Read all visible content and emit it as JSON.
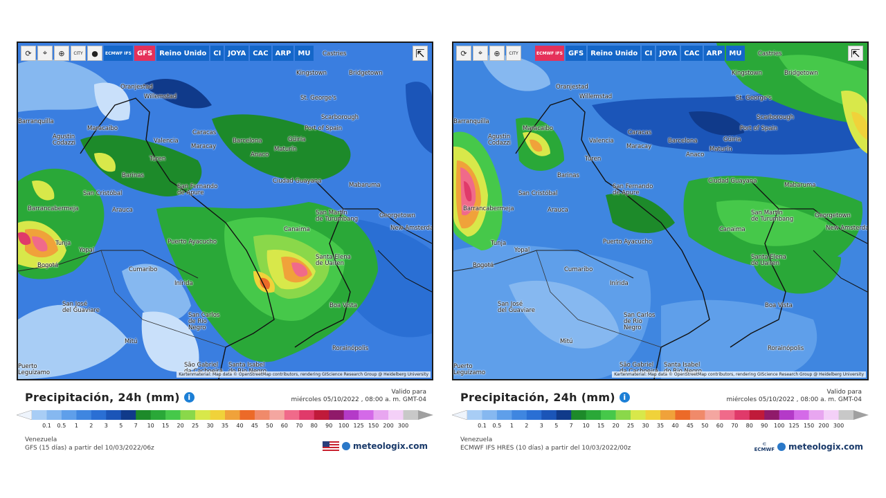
{
  "panels": [
    {
      "id": "left",
      "toolbar": {
        "refresh_icon": "refresh-icon",
        "location_icon": "location-pin-icon",
        "zoom_icon": "zoom-icon",
        "city_label": "CITY",
        "dot_icon": "circle-icon",
        "ecmwf_label": "ECMWF IFS",
        "tabs": [
          "GFS",
          "Reino Unido",
          "CI",
          "JOYA",
          "CAC",
          "ARP",
          "MU"
        ],
        "active_tab": "GFS",
        "share_icon": "share-icon"
      },
      "cities": [
        {
          "name": "Castries"
        },
        {
          "name": "Kingstown"
        },
        {
          "name": "Bridgetown"
        },
        {
          "name": "Oranjestad"
        },
        {
          "name": "Willemstad"
        },
        {
          "name": "St. George's"
        },
        {
          "name": "Scarborough"
        },
        {
          "name": "Barranquilla"
        },
        {
          "name": "Maracaibo"
        },
        {
          "name": "Agustin\nCodazzi"
        },
        {
          "name": "Caracas"
        },
        {
          "name": "Port of Spain"
        },
        {
          "name": "Valencia"
        },
        {
          "name": "Maracay"
        },
        {
          "name": "Barcelona"
        },
        {
          "name": "Güiria"
        },
        {
          "name": "Maturín"
        },
        {
          "name": "Turen"
        },
        {
          "name": "Anaco"
        },
        {
          "name": "Barinas"
        },
        {
          "name": "Ciudad Guayana"
        },
        {
          "name": "Mabaruma"
        },
        {
          "name": "San Fernando\nde Apure"
        },
        {
          "name": "San Cristóbal"
        },
        {
          "name": "Arauca"
        },
        {
          "name": "Barrancabermeja"
        },
        {
          "name": "San Martín\nde Turumbang"
        },
        {
          "name": "Georgetown"
        },
        {
          "name": "New Amsterdam"
        },
        {
          "name": "Canaima"
        },
        {
          "name": "Tunja"
        },
        {
          "name": "Yopal"
        },
        {
          "name": "Puerto Ayacucho"
        },
        {
          "name": "Santa Elena\nde Uairen"
        },
        {
          "name": "Bogotá"
        },
        {
          "name": "Cumaribo"
        },
        {
          "name": "Inírida"
        },
        {
          "name": "Boa Vista"
        },
        {
          "name": "San José\ndel Guaviare"
        },
        {
          "name": "San Carlos\nde Río\nNegro"
        },
        {
          "name": "Mitú"
        },
        {
          "name": "Rorainópolis"
        },
        {
          "name": "São Gabriel\nda Cachoeira"
        },
        {
          "name": "Santa Isabel\ndo Rio Negro"
        },
        {
          "name": "Puerto\nLeguízamo"
        }
      ],
      "attribution": "Kartenmaterial: Map data © OpenStreetMap contributors, rendering GIScience Research Group @ Heidelberg University",
      "title": "Precipitación, 24h (mm)",
      "valid_label": "Valido para",
      "valid_time": "miércoles 05/10/2022 , 08:00 a. m. GMT-04",
      "region": "Venezuela",
      "model_run": "GFS (15 días) a partir del 10/03/2022/06z",
      "flag_icon": "us-flag-icon",
      "brand": "meteologix.com"
    },
    {
      "id": "right",
      "toolbar": {
        "refresh_icon": "refresh-icon",
        "location_icon": "location-pin-icon",
        "zoom_icon": "zoom-icon",
        "city_label": "CITY",
        "ecmwf_label": "ECMWF IFS",
        "tabs": [
          "GFS",
          "Reino Unido",
          "CI",
          "JOYA",
          "CAC",
          "ARP",
          "MU"
        ],
        "active_tab": "ECMWF IFS",
        "share_icon": "share-icon"
      },
      "attribution": "Kartenmaterial: Map data © OpenStreetMap contributors, rendering GIScience Research Group @ Heidelberg University",
      "title": "Precipitación, 24h (mm)",
      "valid_label": "Valido para",
      "valid_time": "miércoles 05/10/2022 , 08:00 a. m. GMT-04",
      "region": "Venezuela",
      "model_run": "ECMWF IFS HRES (10 días) a partir del 10/03/2022/00z",
      "ecmwf_logo": "ECMWF",
      "brand": "meteologix.com"
    }
  ],
  "legend": {
    "ticks": [
      "0.1",
      "0.5",
      "1",
      "2",
      "3",
      "5",
      "7",
      "10",
      "15",
      "20",
      "25",
      "30",
      "35",
      "40",
      "45",
      "50",
      "60",
      "70",
      "80",
      "90",
      "100",
      "125",
      "150",
      "200",
      "300"
    ],
    "colors": [
      "#a8cdf5",
      "#86b8f0",
      "#5f9fea",
      "#3f86e0",
      "#2a6fd4",
      "#1b55b8",
      "#103a8a",
      "#1d8a2a",
      "#2aa838",
      "#46c84a",
      "#8ad84a",
      "#d8e84a",
      "#f0d23a",
      "#f0a23a",
      "#ec6a28",
      "#f08a6a",
      "#f4a6a0",
      "#f06a8a",
      "#e03a6a",
      "#c01a3a",
      "#901a6a",
      "#b43ac8",
      "#d46ae8",
      "#e8a6f0",
      "#f4d0f8",
      "#c8c8c8"
    ]
  }
}
